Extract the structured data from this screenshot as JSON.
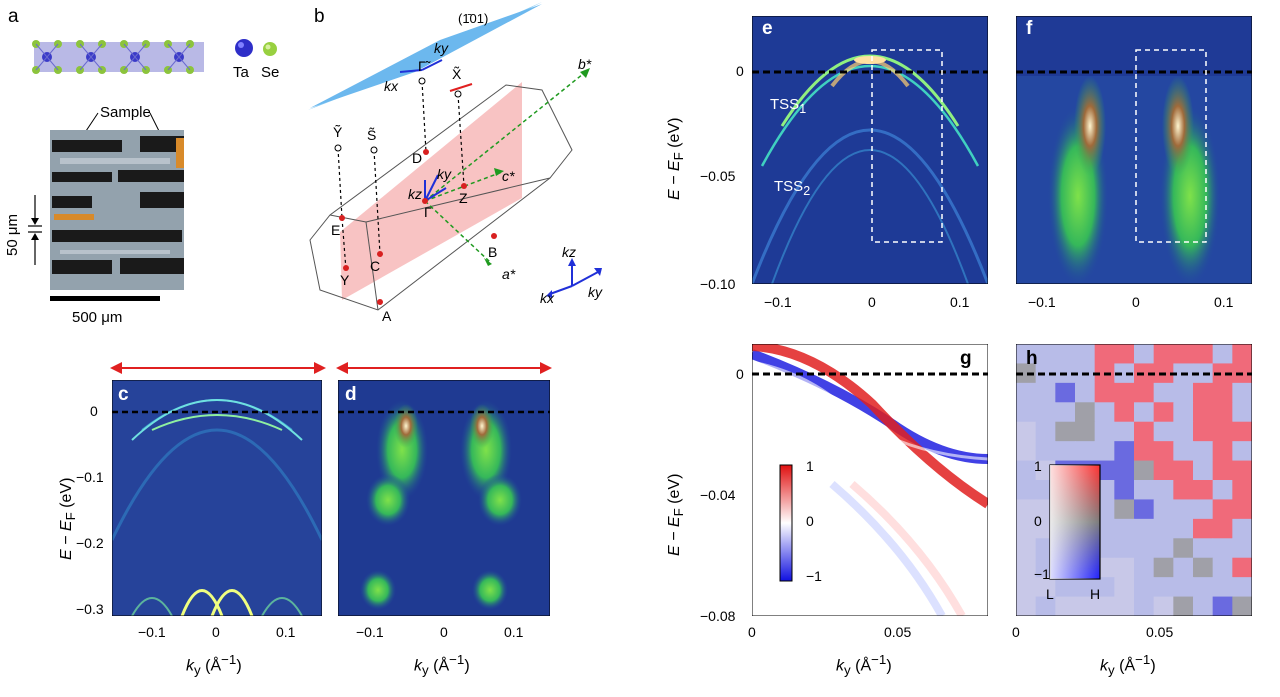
{
  "panels": {
    "a": {
      "label": "a",
      "legend": [
        "Ta",
        "Se"
      ],
      "sample_label": "Sample",
      "scale_small": "50 μm",
      "scale_large": "500 μm"
    },
    "b": {
      "label": "b",
      "plane": "(1̄01)",
      "points": [
        "Γ̃",
        "X̃",
        "Ỹ",
        "S̃",
        "D",
        "Z",
        "E",
        "C",
        "B",
        "Y",
        "A",
        "Γ"
      ],
      "vectors": [
        "a*",
        "b*",
        "c*"
      ],
      "axes": [
        "kx",
        "ky",
        "kz"
      ]
    },
    "c": {
      "label": "c"
    },
    "d": {
      "label": "d"
    },
    "e": {
      "label": "e",
      "tss1": "TSS",
      "tss1_sub": "1",
      "tss2": "TSS",
      "tss2_sub": "2"
    },
    "f": {
      "label": "f"
    },
    "g": {
      "label": "g",
      "cbar_ticks": [
        "1",
        "0",
        "−1"
      ]
    },
    "h": {
      "label": "h",
      "cbar_ticks": [
        "1",
        "0",
        "−1"
      ],
      "cbar_ends": [
        "L",
        "H"
      ]
    }
  },
  "axes": {
    "ylabel_main": "E − E",
    "ylabel_sub": "F",
    "ylabel_unit": " (eV)",
    "xlabel_main": "k",
    "xlabel_sub": "y",
    "xlabel_unit": " (Å",
    "xlabel_exp": "−1",
    "xlabel_close": ")",
    "cd_yticks": [
      "0",
      "−0.1",
      "−0.2",
      "−0.3"
    ],
    "cd_xticks": [
      "−0.1",
      "0",
      "0.1"
    ],
    "ef_yticks": [
      "0",
      "−0.05",
      "−0.10"
    ],
    "ef_xticks": [
      "−0.1",
      "0",
      "0.1"
    ],
    "gh_yticks": [
      "0",
      "−0.04",
      "−0.08"
    ],
    "gh_xticks": [
      "0",
      "0.05"
    ]
  }
}
